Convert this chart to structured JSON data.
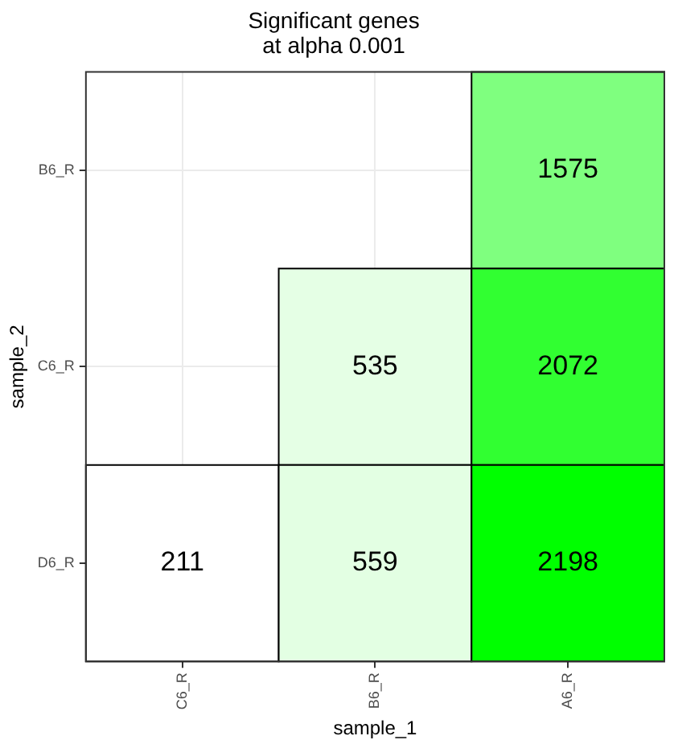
{
  "chart_data": {
    "type": "heatmap",
    "title": "Significant genes\nat alpha 0.001",
    "xlabel": "sample_1",
    "ylabel": "sample_2",
    "categories": [
      "C6_R",
      "B6_R",
      "A6_R"
    ],
    "y_categories": [
      "B6_R",
      "C6_R",
      "D6_R"
    ],
    "cells": [
      [
        null,
        null,
        1575
      ],
      [
        null,
        535,
        2072
      ],
      [
        211,
        559,
        2198
      ]
    ],
    "data_labels": true,
    "grid": true
  }
}
